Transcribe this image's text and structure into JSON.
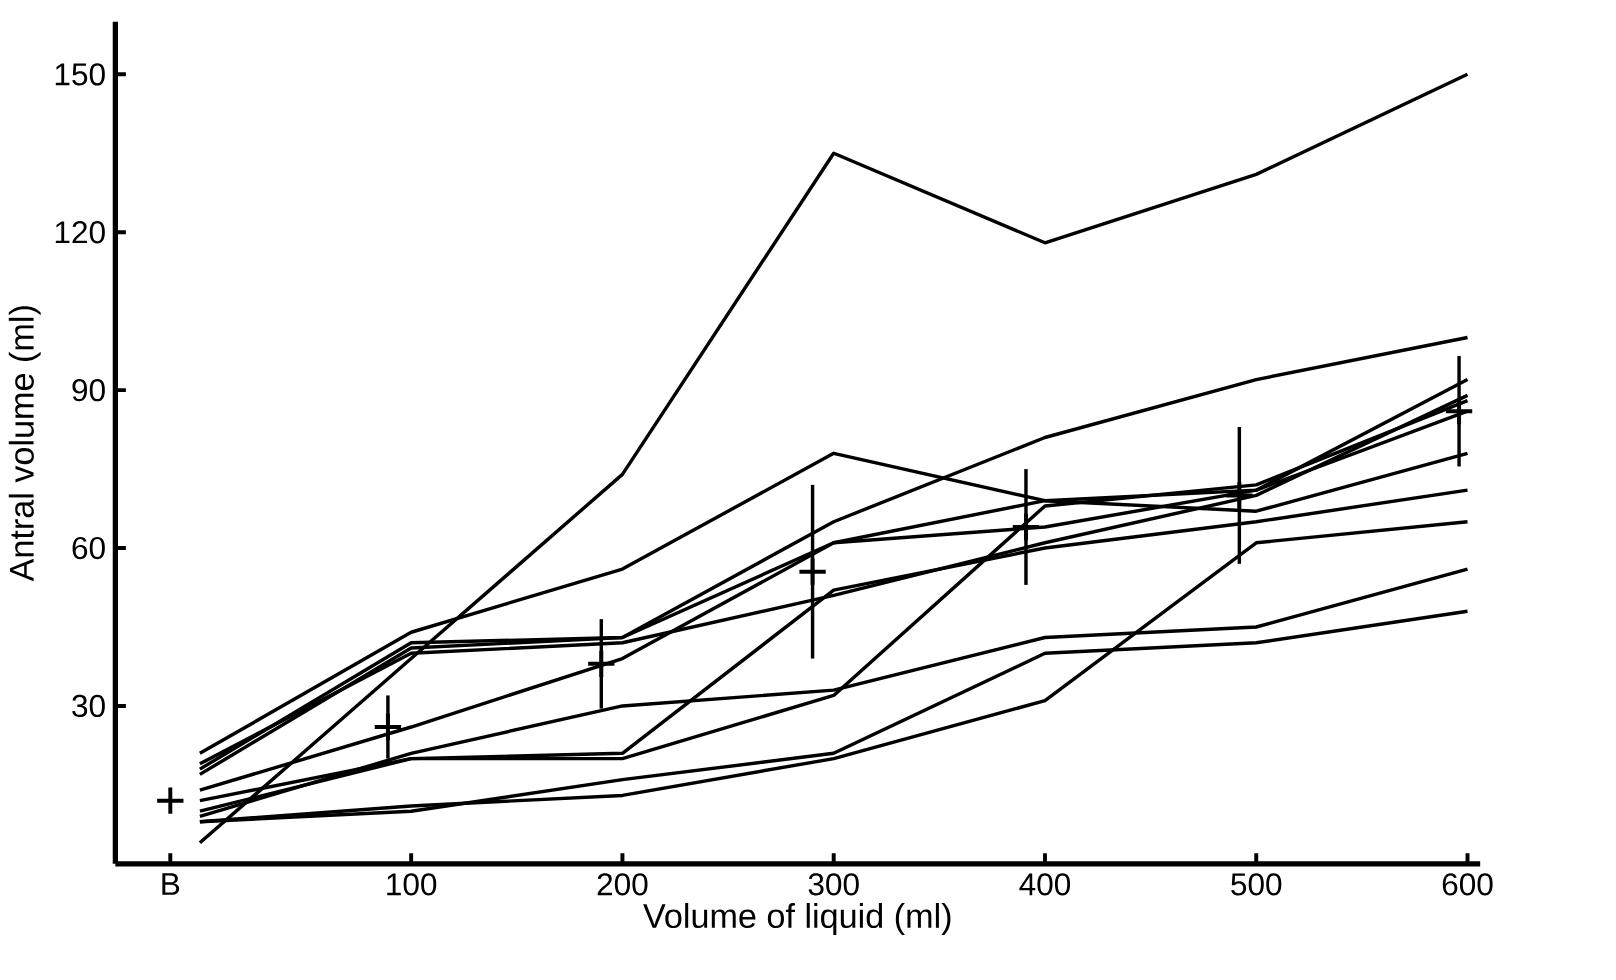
{
  "chart_data": {
    "type": "line",
    "xlabel": "Volume of liquid (ml)",
    "ylabel": "Antral volume (ml)",
    "xlim": [
      -40,
      606
    ],
    "ylim": [
      0,
      160
    ],
    "xticks": [
      {
        "value": -14,
        "label": "B"
      },
      100,
      200,
      300,
      400,
      500,
      600
    ],
    "yticks": [
      30,
      60,
      90,
      120,
      150
    ],
    "line_style": "solid",
    "series": [
      {
        "color": "#000000",
        "x": [
          0,
          100,
          200,
          300,
          400,
          500,
          600
        ],
        "values": [
          4,
          39,
          74,
          135,
          118,
          131,
          150
        ]
      },
      {
        "color": "#000000",
        "x": [
          0,
          100,
          200,
          300,
          400,
          500,
          600
        ],
        "values": [
          21,
          44,
          56,
          78,
          69,
          67,
          78
        ]
      },
      {
        "color": "#000000",
        "x": [
          0,
          100,
          200,
          300,
          400,
          500,
          600
        ],
        "values": [
          18,
          42,
          43,
          65,
          81,
          92,
          100
        ]
      },
      {
        "color": "#000000",
        "x": [
          0,
          100,
          200,
          300,
          400,
          500,
          600
        ],
        "values": [
          17,
          41,
          43,
          61,
          69,
          71,
          92
        ]
      },
      {
        "color": "#000000",
        "x": [
          0,
          100,
          200,
          300,
          400,
          500,
          600
        ],
        "values": [
          19,
          40,
          42,
          51,
          61,
          70,
          89
        ]
      },
      {
        "color": "#000000",
        "x": [
          0,
          100,
          200,
          300,
          400,
          500,
          600
        ],
        "values": [
          14,
          26,
          39,
          61,
          64,
          71,
          86
        ]
      },
      {
        "color": "#000000",
        "x": [
          0,
          100,
          200,
          300,
          400,
          500,
          600
        ],
        "values": [
          10,
          20,
          20,
          32,
          68,
          72,
          88
        ]
      },
      {
        "color": "#000000",
        "x": [
          0,
          100,
          200,
          300,
          400,
          500,
          600
        ],
        "values": [
          9,
          21,
          30,
          33,
          43,
          45,
          56
        ]
      },
      {
        "color": "#000000",
        "x": [
          0,
          100,
          200,
          300,
          400,
          500,
          600
        ],
        "values": [
          8,
          10,
          16,
          21,
          40,
          42,
          48
        ]
      },
      {
        "color": "#000000",
        "x": [
          0,
          100,
          200,
          300,
          400,
          500,
          600
        ],
        "values": [
          8,
          11,
          13,
          20,
          31,
          61,
          65
        ]
      },
      {
        "color": "#000000",
        "x": [
          0,
          100,
          200,
          300,
          400,
          500,
          600
        ],
        "values": [
          12,
          20,
          21,
          52,
          60,
          65,
          71
        ]
      },
      {
        "type": "scatter",
        "marker": "cross",
        "color": "#000000",
        "x": [
          -14,
          89,
          190,
          290,
          391,
          492,
          596
        ],
        "values": [
          12,
          26,
          38,
          55.5,
          64,
          70,
          86
        ],
        "errors": [
          null,
          6,
          8.5,
          16.5,
          11,
          13,
          10.5
        ]
      }
    ]
  }
}
